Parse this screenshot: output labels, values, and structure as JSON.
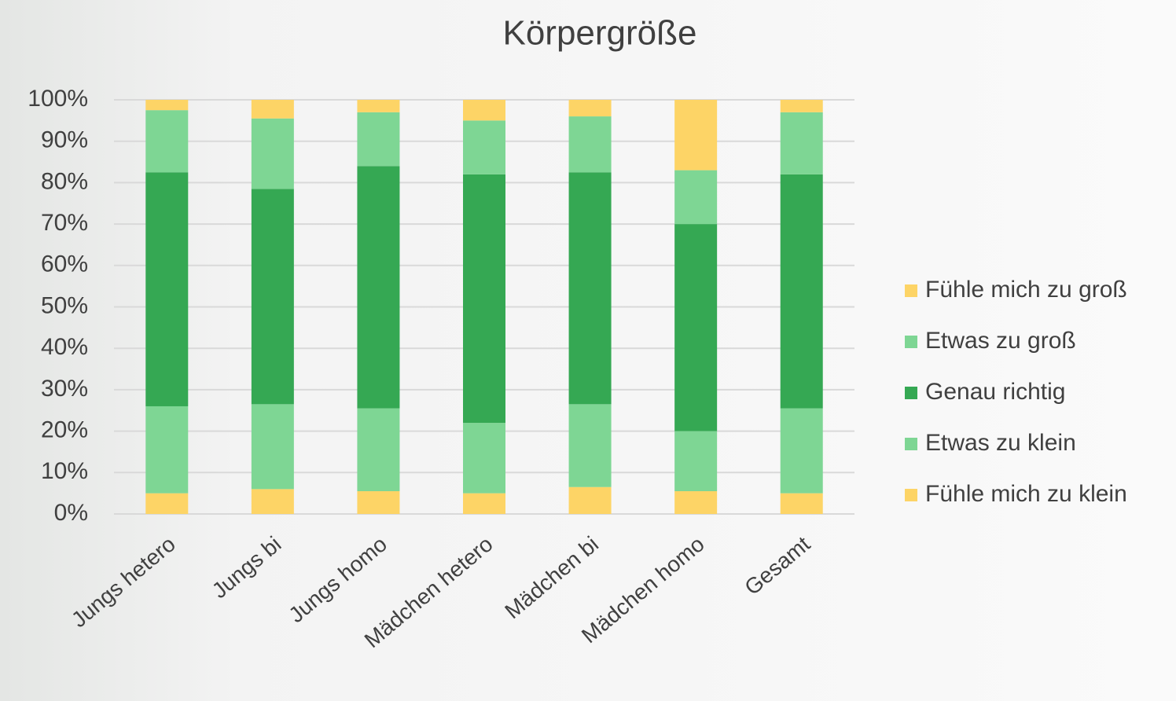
{
  "chart_data": {
    "type": "stacked_bar",
    "title": "Körpergröße",
    "categories": [
      "Jungs hetero",
      "Jungs bi",
      "Jungs homo",
      "Mädchen hetero",
      "Mädchen bi",
      "Mädchen homo",
      "Gesamt"
    ],
    "series": [
      {
        "name": "Fühle mich zu klein",
        "color": "#fdd466",
        "values": [
          5,
          6,
          5.5,
          5,
          6.5,
          5.5,
          5
        ]
      },
      {
        "name": "Etwas zu klein",
        "color": "#7ed694",
        "values": [
          21,
          20.5,
          20,
          17,
          20,
          14.5,
          20.5
        ]
      },
      {
        "name": "Genau richtig",
        "color": "#35a853",
        "values": [
          56.5,
          52,
          58.5,
          60,
          56,
          50,
          56.5
        ]
      },
      {
        "name": "Etwas zu groß",
        "color": "#7ed694",
        "values": [
          15,
          17,
          13,
          13,
          13.5,
          13,
          15
        ]
      },
      {
        "name": "Fühle mich zu groß",
        "color": "#fdd466",
        "values": [
          2.5,
          4.5,
          3,
          5,
          4,
          17,
          3
        ]
      }
    ],
    "ylim": [
      0,
      100
    ],
    "yticks": [
      {
        "value": 0,
        "label": "0%"
      },
      {
        "value": 10,
        "label": "10%"
      },
      {
        "value": 20,
        "label": "20%"
      },
      {
        "value": 30,
        "label": "30%"
      },
      {
        "value": 40,
        "label": "40%"
      },
      {
        "value": 50,
        "label": "50%"
      },
      {
        "value": 60,
        "label": "60%"
      },
      {
        "value": 70,
        "label": "70%"
      },
      {
        "value": 80,
        "label": "80%"
      },
      {
        "value": 90,
        "label": "90%"
      },
      {
        "value": 100,
        "label": "100%"
      }
    ],
    "grid": true,
    "legend": "right"
  }
}
